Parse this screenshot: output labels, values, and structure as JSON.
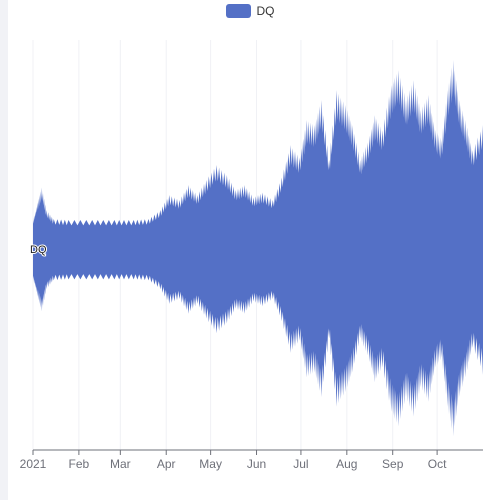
{
  "chart_data": {
    "type": "area",
    "stack": "theme-river",
    "x_axis": {
      "type": "time",
      "tick_labels": [
        "2021",
        "Feb",
        "Mar",
        "Apr",
        "May",
        "Jun",
        "Jul",
        "Aug",
        "Sep",
        "Oct"
      ],
      "tick_dates": [
        "2021-01-01",
        "2021-02-01",
        "2021-03-01",
        "2021-04-01",
        "2021-05-01",
        "2021-06-01",
        "2021-07-01",
        "2021-08-01",
        "2021-09-01",
        "2021-10-01"
      ],
      "range": [
        "2021-01-01",
        "2021-11-01"
      ]
    },
    "y_axis": {
      "visible": false
    },
    "grid": true,
    "legend": {
      "position": "top-center",
      "entries": [
        "DQ"
      ]
    },
    "series": [
      {
        "name": "DQ",
        "color": "#5470c6",
        "label": "DQ",
        "x": [
          "2021-01-01",
          "2021-01-04",
          "2021-01-07",
          "2021-01-10",
          "2021-01-15",
          "2021-01-25",
          "2021-02-10",
          "2021-02-25",
          "2021-03-10",
          "2021-03-20",
          "2021-03-28",
          "2021-04-03",
          "2021-04-10",
          "2021-04-16",
          "2021-04-22",
          "2021-04-28",
          "2021-05-05",
          "2021-05-12",
          "2021-05-18",
          "2021-05-24",
          "2021-05-30",
          "2021-06-05",
          "2021-06-12",
          "2021-06-18",
          "2021-06-24",
          "2021-06-30",
          "2021-07-05",
          "2021-07-10",
          "2021-07-15",
          "2021-07-20",
          "2021-07-25",
          "2021-07-31",
          "2021-08-05",
          "2021-08-10",
          "2021-08-15",
          "2021-08-20",
          "2021-08-25",
          "2021-08-31",
          "2021-09-05",
          "2021-09-10",
          "2021-09-15",
          "2021-09-20",
          "2021-09-25",
          "2021-09-30",
          "2021-10-04",
          "2021-10-08",
          "2021-10-12",
          "2021-10-16",
          "2021-10-20",
          "2021-10-25",
          "2021-11-01"
        ],
        "values": [
          60,
          95,
          125,
          80,
          62,
          60,
          60,
          60,
          60,
          62,
          80,
          110,
          100,
          130,
          110,
          140,
          170,
          150,
          120,
          130,
          105,
          115,
          100,
          145,
          210,
          185,
          260,
          250,
          300,
          180,
          320,
          290,
          250,
          180,
          215,
          270,
          240,
          330,
          360,
          300,
          340,
          280,
          310,
          240,
          220,
          320,
          380,
          300,
          260,
          200,
          250
        ]
      }
    ]
  }
}
